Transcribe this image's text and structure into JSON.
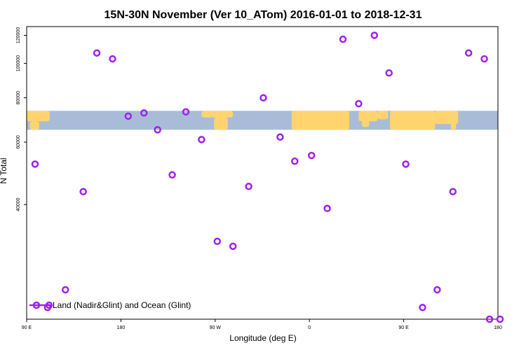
{
  "chart_data": {
    "type": "scatter",
    "title": "15N-30N November (Ver 10_ATom)   2016-01-01 to 2018-12-31",
    "xlabel": "Longitude (deg E)",
    "ylabel": "N Total",
    "x_ticks": [
      {
        "value": 90,
        "label": "90 E"
      },
      {
        "value": 180,
        "label": "180"
      },
      {
        "value": 270,
        "label": "90 W"
      },
      {
        "value": 360,
        "label": "0"
      },
      {
        "value": 450,
        "label": "90 E"
      },
      {
        "value": 540,
        "label": "180"
      }
    ],
    "y_ticks": [
      {
        "value": 40000,
        "label": "40000"
      },
      {
        "value": 60000,
        "label": "60000"
      },
      {
        "value": 80000,
        "label": "80000"
      },
      {
        "value": 100000,
        "label": "100000"
      },
      {
        "value": 120000,
        "label": "120000"
      }
    ],
    "xlim": [
      90,
      540
    ],
    "ylim": [
      19000,
      127000
    ],
    "y_scale": "log",
    "grid": false,
    "legend_position": "bottom-left",
    "series": [
      {
        "name": "Land (Nadir&Glint) and Ocean (Glint)",
        "color": "#a020f0",
        "marker": "open-circle",
        "x": [
          98,
          110,
          127,
          144,
          157,
          172,
          187,
          202,
          215,
          229,
          242,
          257,
          272,
          287,
          302,
          316,
          332,
          346,
          362,
          377,
          392,
          407,
          422,
          436,
          452,
          468,
          482,
          497,
          512,
          527,
          532,
          542
        ],
        "y": [
          52000,
          20500,
          23000,
          43500,
          107000,
          103000,
          71000,
          72500,
          65000,
          48500,
          73000,
          61000,
          31500,
          30500,
          45000,
          80000,
          62000,
          53000,
          55000,
          39000,
          117000,
          77000,
          120000,
          94000,
          52000,
          20500,
          23000,
          43500,
          107000,
          103000,
          19000,
          19000
        ]
      }
    ],
    "background_map": {
      "description": "latitude band 15N-30N world map strip",
      "land_color": "#ffd46e",
      "ocean_color": "#a8bcd8",
      "y_top_value": 73500,
      "y_bottom_value": 65000
    }
  }
}
